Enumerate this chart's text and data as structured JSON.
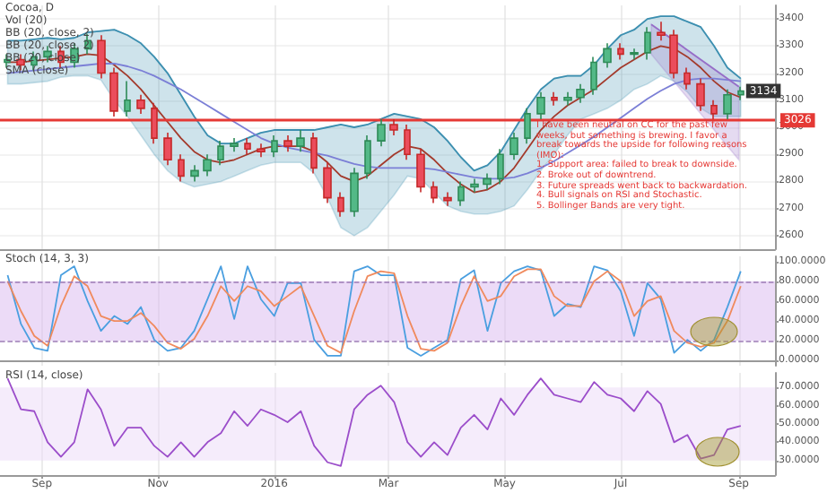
{
  "chart_data": [
    {
      "type": "candlestick",
      "title": "Cocoa, D",
      "x": [
        "2015-08-14",
        "2015-08-21",
        "2015-08-28",
        "2015-09-04",
        "2015-09-11",
        "2015-09-18",
        "2015-09-25",
        "2015-10-02",
        "2015-10-09",
        "2015-10-16",
        "2015-10-23",
        "2015-10-30",
        "2015-11-06",
        "2015-11-13",
        "2015-11-20",
        "2015-11-27",
        "2015-12-04",
        "2015-12-11",
        "2015-12-18",
        "2015-12-25",
        "2016-01-01",
        "2016-01-08",
        "2016-01-15",
        "2016-01-22",
        "2016-01-29",
        "2016-02-05",
        "2016-02-12",
        "2016-02-19",
        "2016-02-26",
        "2016-03-04",
        "2016-03-11",
        "2016-03-18",
        "2016-03-25",
        "2016-04-01",
        "2016-04-08",
        "2016-04-15",
        "2016-04-22",
        "2016-04-29",
        "2016-05-06",
        "2016-05-13",
        "2016-05-20",
        "2016-05-27",
        "2016-06-03",
        "2016-06-10",
        "2016-06-17",
        "2016-06-24",
        "2016-07-01",
        "2016-07-08",
        "2016-07-15",
        "2016-07-22",
        "2016-07-29",
        "2016-08-05",
        "2016-08-12",
        "2016-08-19",
        "2016-08-26",
        "2016-09-02"
      ],
      "ohlc": [
        [
          3240,
          3270,
          3220,
          3250
        ],
        [
          3250,
          3270,
          3210,
          3230
        ],
        [
          3230,
          3280,
          3210,
          3260
        ],
        [
          3260,
          3300,
          3240,
          3280
        ],
        [
          3280,
          3300,
          3220,
          3240
        ],
        [
          3240,
          3310,
          3220,
          3290
        ],
        [
          3290,
          3345,
          3270,
          3320
        ],
        [
          3320,
          3340,
          3180,
          3200
        ],
        [
          3200,
          3220,
          3040,
          3060
        ],
        [
          3060,
          3170,
          3040,
          3100
        ],
        [
          3100,
          3120,
          3050,
          3070
        ],
        [
          3070,
          3090,
          2940,
          2960
        ],
        [
          2960,
          2980,
          2860,
          2880
        ],
        [
          2880,
          2900,
          2800,
          2820
        ],
        [
          2820,
          2860,
          2800,
          2840
        ],
        [
          2840,
          2900,
          2820,
          2880
        ],
        [
          2880,
          2950,
          2860,
          2930
        ],
        [
          2930,
          2960,
          2910,
          2940
        ],
        [
          2940,
          2960,
          2900,
          2920
        ],
        [
          2920,
          2940,
          2890,
          2910
        ],
        [
          2910,
          2970,
          2890,
          2950
        ],
        [
          2950,
          2970,
          2910,
          2930
        ],
        [
          2930,
          2990,
          2910,
          2960
        ],
        [
          2960,
          2980,
          2830,
          2850
        ],
        [
          2850,
          2870,
          2720,
          2740
        ],
        [
          2740,
          2760,
          2670,
          2690
        ],
        [
          2690,
          2850,
          2670,
          2830
        ],
        [
          2830,
          2970,
          2810,
          2950
        ],
        [
          2950,
          3030,
          2930,
          3010
        ],
        [
          3010,
          3030,
          2970,
          2990
        ],
        [
          2990,
          3010,
          2880,
          2900
        ],
        [
          2900,
          2920,
          2760,
          2780
        ],
        [
          2780,
          2800,
          2720,
          2740
        ],
        [
          2740,
          2760,
          2710,
          2730
        ],
        [
          2730,
          2800,
          2710,
          2780
        ],
        [
          2780,
          2810,
          2760,
          2790
        ],
        [
          2790,
          2830,
          2770,
          2810
        ],
        [
          2810,
          2920,
          2790,
          2900
        ],
        [
          2900,
          2980,
          2880,
          2960
        ],
        [
          2960,
          3070,
          2940,
          3050
        ],
        [
          3050,
          3130,
          3030,
          3110
        ],
        [
          3110,
          3130,
          3080,
          3100
        ],
        [
          3100,
          3130,
          3080,
          3110
        ],
        [
          3110,
          3160,
          3090,
          3140
        ],
        [
          3140,
          3260,
          3120,
          3240
        ],
        [
          3240,
          3310,
          3220,
          3290
        ],
        [
          3290,
          3310,
          3250,
          3270
        ],
        [
          3270,
          3290,
          3250,
          3275
        ],
        [
          3275,
          3370,
          3250,
          3350
        ],
        [
          3350,
          3390,
          3320,
          3340
        ],
        [
          3340,
          3360,
          3180,
          3200
        ],
        [
          3200,
          3220,
          3140,
          3160
        ],
        [
          3160,
          3180,
          3060,
          3080
        ],
        [
          3080,
          3100,
          3030,
          3050
        ],
        [
          3050,
          3140,
          3030,
          3120
        ],
        [
          3120,
          3150,
          3100,
          3134
        ]
      ],
      "series": [
        {
          "type": "line",
          "color": "#a33a2c",
          "values": [
            3240,
            3240,
            3245,
            3250,
            3255,
            3260,
            3270,
            3265,
            3230,
            3190,
            3140,
            3080,
            3020,
            2960,
            2910,
            2880,
            2870,
            2880,
            2900,
            2920,
            2930,
            2930,
            2930,
            2910,
            2870,
            2820,
            2800,
            2820,
            2860,
            2900,
            2930,
            2920,
            2880,
            2830,
            2790,
            2760,
            2770,
            2800,
            2850,
            2920,
            2990,
            3040,
            3080,
            3110,
            3140,
            3180,
            3220,
            3250,
            3280,
            3300,
            3290,
            3260,
            3220,
            3170,
            3130,
            3110
          ]
        },
        {
          "type": "line",
          "color": "#3c8fb0",
          "values": [
            3320,
            3320,
            3325,
            3330,
            3325,
            3330,
            3350,
            3355,
            3360,
            3340,
            3310,
            3260,
            3200,
            3120,
            3040,
            2970,
            2940,
            2940,
            2960,
            2980,
            2990,
            2990,
            2990,
            2990,
            3000,
            3010,
            3000,
            3010,
            3030,
            3050,
            3040,
            3030,
            3000,
            2950,
            2890,
            2840,
            2860,
            2910,
            2990,
            3070,
            3140,
            3180,
            3190,
            3190,
            3230,
            3290,
            3340,
            3360,
            3400,
            3410,
            3410,
            3390,
            3370,
            3300,
            3220,
            3180
          ],
          "lower": [
            3160,
            3160,
            3165,
            3170,
            3185,
            3190,
            3190,
            3175,
            3100,
            3040,
            2970,
            2900,
            2840,
            2800,
            2780,
            2790,
            2800,
            2820,
            2840,
            2860,
            2870,
            2870,
            2870,
            2830,
            2740,
            2630,
            2600,
            2630,
            2690,
            2750,
            2820,
            2810,
            2760,
            2710,
            2690,
            2680,
            2680,
            2690,
            2710,
            2770,
            2840,
            2900,
            2970,
            3030,
            3050,
            3070,
            3100,
            3140,
            3160,
            3190,
            3170,
            3130,
            3070,
            3040,
            3040,
            3040
          ],
          "upper": [
            3320,
            3320,
            3325,
            3330,
            3325,
            3330,
            3350,
            3355,
            3360,
            3340,
            3310,
            3260,
            3200,
            3120,
            3040,
            2970,
            2940,
            2940,
            2960,
            2980,
            2990,
            2990,
            2990,
            2990,
            3000,
            3010,
            3000,
            3010,
            3030,
            3050,
            3040,
            3030,
            3000,
            2950,
            2890,
            2840,
            2860,
            2910,
            2990,
            3070,
            3140,
            3180,
            3190,
            3190,
            3230,
            3290,
            3340,
            3360,
            3400,
            3410,
            3410,
            3390,
            3370,
            3300,
            3220,
            3180
          ]
        },
        {
          "type": "line",
          "color": "#7b7fd6",
          "values": [
            3200,
            3205,
            3210,
            3215,
            3220,
            3225,
            3230,
            3235,
            3235,
            3225,
            3210,
            3190,
            3165,
            3140,
            3110,
            3080,
            3050,
            3020,
            2990,
            2960,
            2940,
            2925,
            2915,
            2905,
            2895,
            2880,
            2865,
            2855,
            2850,
            2850,
            2850,
            2850,
            2845,
            2835,
            2825,
            2815,
            2810,
            2810,
            2815,
            2830,
            2850,
            2875,
            2905,
            2935,
            2965,
            3000,
            3035,
            3070,
            3105,
            3135,
            3160,
            3175,
            3180,
            3180,
            3175,
            3170
          ]
        },
        {
          "type": "line",
          "color": "#966ec8",
          "x": [
            "2016-07-17",
            "2016-09-01"
          ],
          "values": [
            3380,
            3150
          ],
          "lower": [
            3270,
            2880
          ],
          "upper": [
            3380,
            3150
          ]
        }
      ],
      "xlim": [
        "2015-08-10",
        "2016-09-20"
      ],
      "xticks": [
        {
          "value": "2015-09-01",
          "label": null
        },
        {
          "value": "2015-11-01",
          "label": null
        },
        {
          "value": "2016-01-01",
          "label": null
        },
        {
          "value": "2016-03-01",
          "label": null
        },
        {
          "value": "2016-05-01",
          "label": null
        },
        {
          "value": "2016-07-01",
          "label": null
        },
        {
          "value": "2016-09-01",
          "label": null
        }
      ],
      "ylim": [
        2550,
        3450
      ],
      "yticks": [
        2600,
        2700,
        2800,
        2900,
        3000,
        3100,
        3200,
        3300,
        3400
      ],
      "tick_labels": "y",
      "grid": true,
      "ref_lines": [
        {
          "axis": "y",
          "value": 3026,
          "label": "3026",
          "color": "#e53935"
        }
      ],
      "annotations": [
        "Vol (20)",
        "BB (20, close, 2)",
        "BB (20, close, 2)",
        "BB (20, close)",
        "SMA (close)",
        {
          "text": "3134",
          "x": "2016-09-02",
          "y": 3134
        },
        "I have been neutral on CC for the past few weeks, but something is brewing. I favor a break towards the upside for following reasons (IMO):\n1. Support area: failed to break to downside.\n2. Broke out of downtrend.\n3. Future spreads went back to backwardation.\n4. Bull signals on RSI and Stochastic.\n5. Bollinger Bands are very tight."
      ]
    },
    {
      "type": "line",
      "title": "Stoch (14, 3, 3)",
      "x": [
        "2015-08-14",
        "2015-08-21",
        "2015-08-28",
        "2015-09-04",
        "2015-09-11",
        "2015-09-18",
        "2015-09-25",
        "2015-10-02",
        "2015-10-09",
        "2015-10-16",
        "2015-10-23",
        "2015-10-30",
        "2015-11-06",
        "2015-11-13",
        "2015-11-20",
        "2015-11-27",
        "2015-12-04",
        "2015-12-11",
        "2015-12-18",
        "2015-12-25",
        "2016-01-01",
        "2016-01-08",
        "2016-01-15",
        "2016-01-22",
        "2016-01-29",
        "2016-02-05",
        "2016-02-12",
        "2016-02-19",
        "2016-02-26",
        "2016-03-04",
        "2016-03-11",
        "2016-03-18",
        "2016-03-25",
        "2016-04-01",
        "2016-04-08",
        "2016-04-15",
        "2016-04-22",
        "2016-04-29",
        "2016-05-06",
        "2016-05-13",
        "2016-05-20",
        "2016-05-27",
        "2016-06-03",
        "2016-06-10",
        "2016-06-17",
        "2016-06-24",
        "2016-07-01",
        "2016-07-08",
        "2016-07-15",
        "2016-07-22",
        "2016-07-29",
        "2016-08-05",
        "2016-08-12",
        "2016-08-19",
        "2016-08-26",
        "2016-09-02"
      ],
      "series": [
        {
          "color": "#4a9fe0",
          "values": [
            86,
            37,
            13,
            10,
            86,
            95,
            60,
            30,
            45,
            37,
            54,
            21,
            10,
            13,
            30,
            62,
            95,
            42,
            95,
            62,
            45,
            78,
            78,
            21,
            5,
            5,
            90,
            95,
            86,
            86,
            13,
            5,
            13,
            21,
            82,
            91,
            30,
            78,
            90,
            95,
            91,
            45,
            57,
            54,
            95,
            91,
            70,
            25,
            78,
            62,
            8,
            21,
            10,
            21,
            54,
            90
          ]
        },
        {
          "color": "#f08a5d",
          "values": [
            80,
            50,
            25,
            15,
            55,
            85,
            75,
            45,
            40,
            40,
            48,
            35,
            18,
            12,
            22,
            45,
            75,
            60,
            75,
            70,
            55,
            65,
            75,
            45,
            15,
            8,
            50,
            85,
            90,
            88,
            45,
            12,
            10,
            18,
            55,
            85,
            60,
            65,
            85,
            92,
            92,
            65,
            55,
            55,
            80,
            90,
            80,
            45,
            60,
            65,
            30,
            18,
            14,
            18,
            40,
            75
          ]
        }
      ],
      "xlim": [
        "2015-08-10",
        "2016-09-20"
      ],
      "xticks": [
        {
          "value": "2015-09-01",
          "label": null
        },
        {
          "value": "2015-11-01",
          "label": null
        },
        {
          "value": "2016-01-01",
          "label": null
        },
        {
          "value": "2016-03-01",
          "label": null
        },
        {
          "value": "2016-05-01",
          "label": null
        },
        {
          "value": "2016-07-01",
          "label": null
        },
        {
          "value": "2016-09-01",
          "label": null
        }
      ],
      "ylim": [
        -5,
        105
      ],
      "yticks": [
        {
          "value": 0,
          "label": "0.00000"
        },
        {
          "value": 20,
          "label": "20.0000"
        },
        {
          "value": 40,
          "label": "40.0000"
        },
        {
          "value": 60,
          "label": "60.0000"
        },
        {
          "value": 80,
          "label": "80.0000"
        },
        {
          "value": 100,
          "label": "100.0000"
        }
      ],
      "tick_labels": "y",
      "grid": "x",
      "bands": [
        {
          "axis": "y",
          "from": 20,
          "to": 80,
          "color": "#d9b8f0"
        }
      ],
      "ref_lines": [
        {
          "axis": "y",
          "value": 20,
          "color": "#9c7bb5",
          "line_style": "dashed"
        },
        {
          "axis": "y",
          "value": 80,
          "color": "#9c7bb5",
          "line_style": "dashed"
        }
      ]
    },
    {
      "type": "line",
      "title": "RSI (14, close)",
      "x": [
        "2015-08-14",
        "2015-08-21",
        "2015-08-28",
        "2015-09-04",
        "2015-09-11",
        "2015-09-18",
        "2015-09-25",
        "2015-10-02",
        "2015-10-09",
        "2015-10-16",
        "2015-10-23",
        "2015-10-30",
        "2015-11-06",
        "2015-11-13",
        "2015-11-20",
        "2015-11-27",
        "2015-12-04",
        "2015-12-11",
        "2015-12-18",
        "2015-12-25",
        "2016-01-01",
        "2016-01-08",
        "2016-01-15",
        "2016-01-22",
        "2016-01-29",
        "2016-02-05",
        "2016-02-12",
        "2016-02-19",
        "2016-02-26",
        "2016-03-04",
        "2016-03-11",
        "2016-03-18",
        "2016-03-25",
        "2016-04-01",
        "2016-04-08",
        "2016-04-15",
        "2016-04-22",
        "2016-04-29",
        "2016-05-06",
        "2016-05-13",
        "2016-05-20",
        "2016-05-27",
        "2016-06-03",
        "2016-06-10",
        "2016-06-17",
        "2016-06-24",
        "2016-07-01",
        "2016-07-08",
        "2016-07-15",
        "2016-07-22",
        "2016-07-29",
        "2016-08-05",
        "2016-08-12",
        "2016-08-19",
        "2016-08-26",
        "2016-09-02"
      ],
      "series": [
        {
          "color": "#9b4dca",
          "values": [
            75,
            58,
            57,
            40,
            32,
            40,
            69,
            58,
            38,
            48,
            48,
            38,
            32,
            40,
            32,
            40,
            45,
            57,
            49,
            58,
            55,
            51,
            57,
            38,
            29,
            27,
            58,
            66,
            71,
            62,
            40,
            32,
            40,
            33,
            48,
            55,
            47,
            64,
            55,
            66,
            75,
            66,
            64,
            62,
            73,
            66,
            64,
            57,
            68,
            61,
            40,
            44,
            31,
            33,
            47,
            49
          ]
        }
      ],
      "xlim": [
        "2015-08-10",
        "2016-09-20"
      ],
      "xticks": [
        {
          "value": "2015-09-01",
          "label": "Sep"
        },
        {
          "value": "2015-11-01",
          "label": "Nov"
        },
        {
          "value": "2016-01-01",
          "label": "2016"
        },
        {
          "value": "2016-03-01",
          "label": "Mar"
        },
        {
          "value": "2016-05-01",
          "label": "May"
        },
        {
          "value": "2016-07-01",
          "label": "Jul"
        },
        {
          "value": "2016-09-01",
          "label": "Sep"
        }
      ],
      "ylim": [
        22,
        78
      ],
      "yticks": [
        {
          "value": 30,
          "label": "30.0000"
        },
        {
          "value": 40,
          "label": "40.0000"
        },
        {
          "value": 50,
          "label": "50.0000"
        },
        {
          "value": 60,
          "label": "60.0000"
        },
        {
          "value": 70,
          "label": "70.0000"
        }
      ],
      "grid": "x",
      "bands": [
        {
          "axis": "y",
          "from": 30,
          "to": 70,
          "color": "#ecd9f7"
        }
      ]
    }
  ]
}
